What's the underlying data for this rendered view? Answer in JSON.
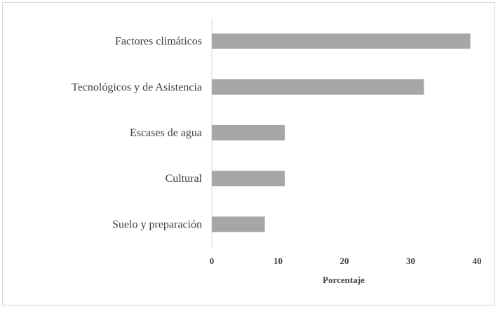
{
  "chart_data": {
    "type": "bar",
    "orientation": "horizontal",
    "categories": [
      "Factores climáticos",
      "Tecnológicos y de Asistencia",
      "Escases de agua",
      "Cultural",
      "Suelo y preparación"
    ],
    "values": [
      39,
      32,
      11,
      11,
      8
    ],
    "title": "",
    "xlabel": "Porcentaje",
    "ylabel": "",
    "xlim": [
      0,
      40
    ],
    "xticks": [
      "0",
      "10",
      "20",
      "30",
      "40"
    ],
    "grid": false,
    "legend": "none",
    "bar_color": "#a6a6a6",
    "axis_color": "#d9d9d9",
    "text_color": "#404040"
  }
}
